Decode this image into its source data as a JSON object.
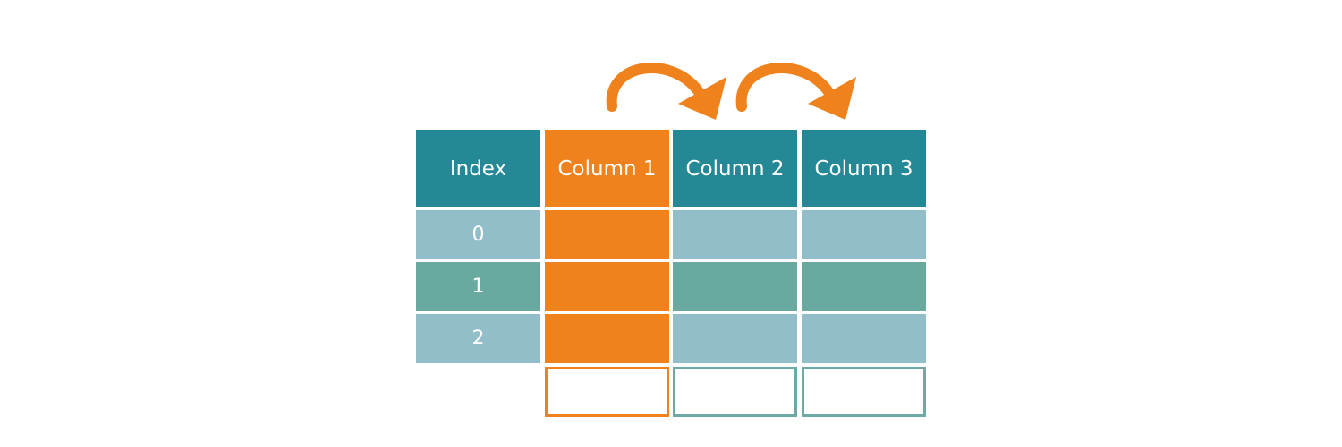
{
  "colors": {
    "header_teal": "#258896",
    "highlight_orange": "#ef821c",
    "row_light": "#92bec9",
    "row_green": "#69a9a0",
    "result_border_teal": "#6fa9a5",
    "background": "#ffffff"
  },
  "table": {
    "header": {
      "index": "Index",
      "columns": [
        "Column 1",
        "Column 2",
        "Column 3"
      ]
    },
    "index_values": [
      "0",
      "1",
      "2"
    ],
    "highlighted_column": "Column 1",
    "row_shades": [
      "light",
      "green",
      "light"
    ]
  },
  "arrows": [
    {
      "from": "Column 1",
      "to": "Column 2"
    },
    {
      "from": "Column 2",
      "to": "Column 3"
    }
  ],
  "result_boxes": 3
}
